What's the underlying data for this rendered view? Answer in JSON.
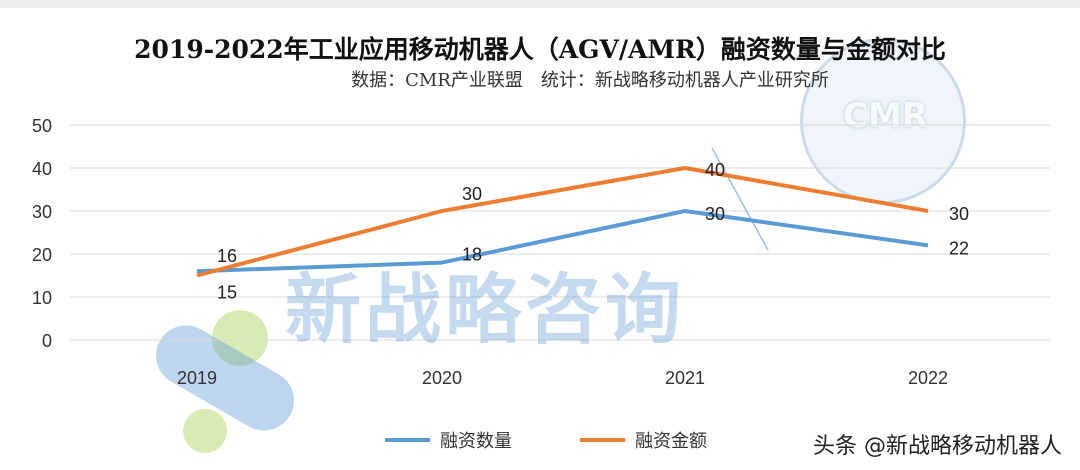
{
  "chart_data": {
    "type": "line",
    "title": "2019-2022年工业应用移动机器人（AGV/AMR）融资数量与金额对比",
    "subtitle": "数据：CMR产业联盟　统计：新战略移动机器人产业研究所",
    "categories": [
      "2019",
      "2020",
      "2021",
      "2022"
    ],
    "series": [
      {
        "name": "融资数量",
        "values": [
          16,
          18,
          30,
          22
        ],
        "color": "#5B9BD5"
      },
      {
        "name": "融资金额",
        "values": [
          15,
          30,
          40,
          30
        ],
        "color": "#ED7D31"
      }
    ],
    "ylim": [
      0,
      50
    ],
    "yticks": [
      0,
      10,
      20,
      30,
      40,
      50
    ],
    "grid": true,
    "legend": "bottom"
  },
  "watermarks": {
    "platform": "头条 @新战略移动机器人",
    "overlay": "新战略咨询",
    "logo": "CMR"
  }
}
